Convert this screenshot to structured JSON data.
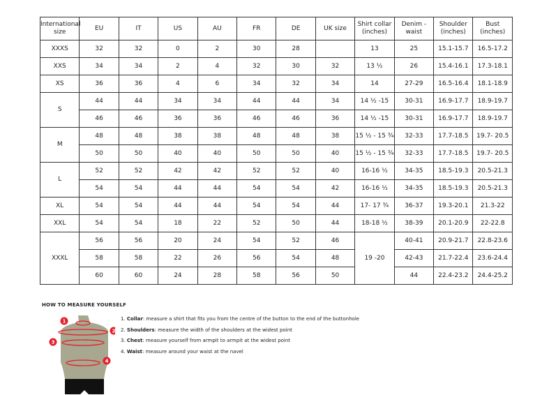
{
  "headers": [
    "International size",
    "EU",
    "IT",
    "US",
    "AU",
    "FR",
    "DE",
    "UK size",
    "Shirt collar (inches)",
    "Denim - waist",
    "Shoulder (inches)",
    "Bust (inches)"
  ],
  "groups": [
    {
      "size": "XXXS",
      "rows": [
        [
          "32",
          "32",
          "0",
          "2",
          "30",
          "28",
          "",
          "13",
          "25",
          "15.1-15.7",
          "16.5-17.2"
        ]
      ]
    },
    {
      "size": "XXS",
      "rows": [
        [
          "34",
          "34",
          "2",
          "4",
          "32",
          "30",
          "32",
          "13 ½",
          "26",
          "15.4-16.1",
          "17.3-18.1"
        ]
      ]
    },
    {
      "size": "XS",
      "rows": [
        [
          "36",
          "36",
          "4",
          "6",
          "34",
          "32",
          "34",
          "14",
          "27-29",
          "16.5-16.4",
          "18.1-18.9"
        ]
      ]
    },
    {
      "size": "S",
      "rows": [
        [
          "44",
          "44",
          "34",
          "34",
          "44",
          "44",
          "34",
          "14 ½ -15",
          "30-31",
          "16.9-17.7",
          "18.9-19.7"
        ],
        [
          "46",
          "46",
          "36",
          "36",
          "46",
          "46",
          "36",
          "14 ½ -15",
          "30-31",
          "16.9-17.7",
          "18.9-19.7"
        ]
      ]
    },
    {
      "size": "M",
      "rows": [
        [
          "48",
          "48",
          "38",
          "38",
          "48",
          "48",
          "38",
          "15 ½ - 15 ¾",
          "32-33",
          "17.7-18.5",
          "19.7- 20.5"
        ],
        [
          "50",
          "50",
          "40",
          "40",
          "50",
          "50",
          "40",
          "15 ½ - 15 ¾",
          "32-33",
          "17.7-18.5",
          "19.7- 20.5"
        ]
      ]
    },
    {
      "size": "L",
      "rows": [
        [
          "52",
          "52",
          "42",
          "42",
          "52",
          "52",
          "40",
          "16-16 ½",
          "34-35",
          "18.5-19.3",
          "20.5-21.3"
        ],
        [
          "54",
          "54",
          "44",
          "44",
          "54",
          "54",
          "42",
          "16-16 ½",
          "34-35",
          "18.5-19.3",
          "20.5-21.3"
        ]
      ]
    },
    {
      "size": "XL",
      "rows": [
        [
          "54",
          "54",
          "44",
          "44",
          "54",
          "54",
          "44",
          "17- 17 ¾",
          "36-37",
          "19.3-20.1",
          "21.3-22"
        ]
      ]
    },
    {
      "size": "XXL",
      "rows": [
        [
          "54",
          "54",
          "18",
          "22",
          "52",
          "50",
          "44",
          "18-18 ½",
          "38-39",
          "20.1-20.9",
          "22-22.8"
        ]
      ]
    },
    {
      "size": "XXXL",
      "collar": "19 -20",
      "rows": [
        [
          "56",
          "56",
          "20",
          "24",
          "54",
          "52",
          "46",
          null,
          "40-41",
          "20.9-21.7",
          "22.8-23.6"
        ],
        [
          "58",
          "58",
          "22",
          "26",
          "56",
          "54",
          "48",
          null,
          "42-43",
          "21.7-22.4",
          "23.6-24.4"
        ],
        [
          "60",
          "60",
          "24",
          "28",
          "58",
          "56",
          "50",
          null,
          "44",
          "22.4-23.2",
          "24.4-25.2"
        ]
      ]
    }
  ],
  "howto": {
    "title": "HOW TO MEASURE YOURSELF",
    "markers": [
      "1",
      "2",
      "3",
      "4"
    ],
    "items": [
      {
        "num": "1.",
        "term": "Collar",
        "text": ": measure a shirt that fits you from the centre of the button to the end of the buttonhole"
      },
      {
        "num": "2.",
        "term": "Shoulders",
        "text": ": measure the width of the shoulders at the widest point"
      },
      {
        "num": "3.",
        "term": "Chest",
        "text": ": measure yourself from armpit to armpit at the widest point"
      },
      {
        "num": "4.",
        "term": "Waist",
        "text": ": measure around your waist at the navel"
      }
    ]
  },
  "colors": {
    "marker": "#e3202b",
    "torso": "#a8a78f",
    "shorts": "#111111"
  }
}
